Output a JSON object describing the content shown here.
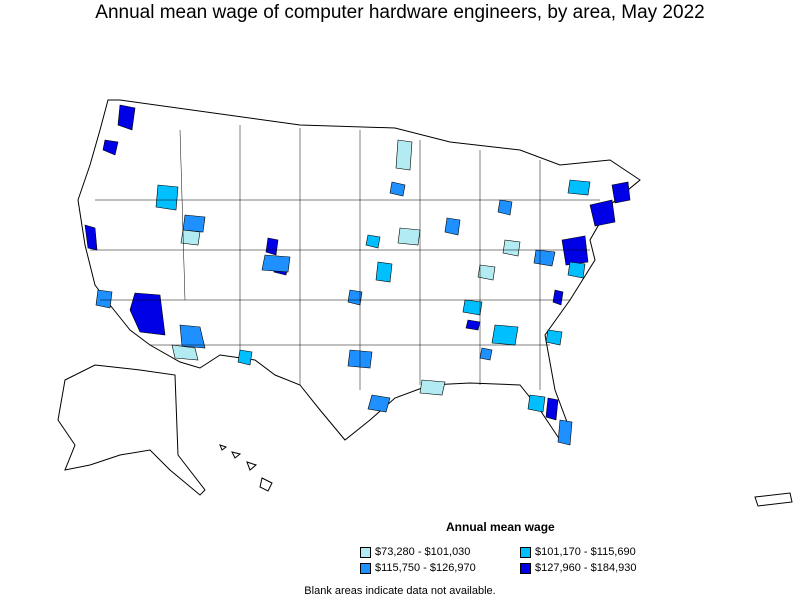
{
  "title": "Annual mean wage of computer hardware engineers, by area, May 2022",
  "legend": {
    "title": "Annual mean wage",
    "items": [
      {
        "label": "$73,280 - $101,030",
        "color": "#b2ebf2"
      },
      {
        "label": "$101,170 - $115,690",
        "color": "#00bfff"
      },
      {
        "label": "$115,750 - $126,970",
        "color": "#1e90ff"
      },
      {
        "label": "$127,960 - $184,930",
        "color": "#0000e6"
      }
    ]
  },
  "footnote": "Blank areas indicate data not available."
}
